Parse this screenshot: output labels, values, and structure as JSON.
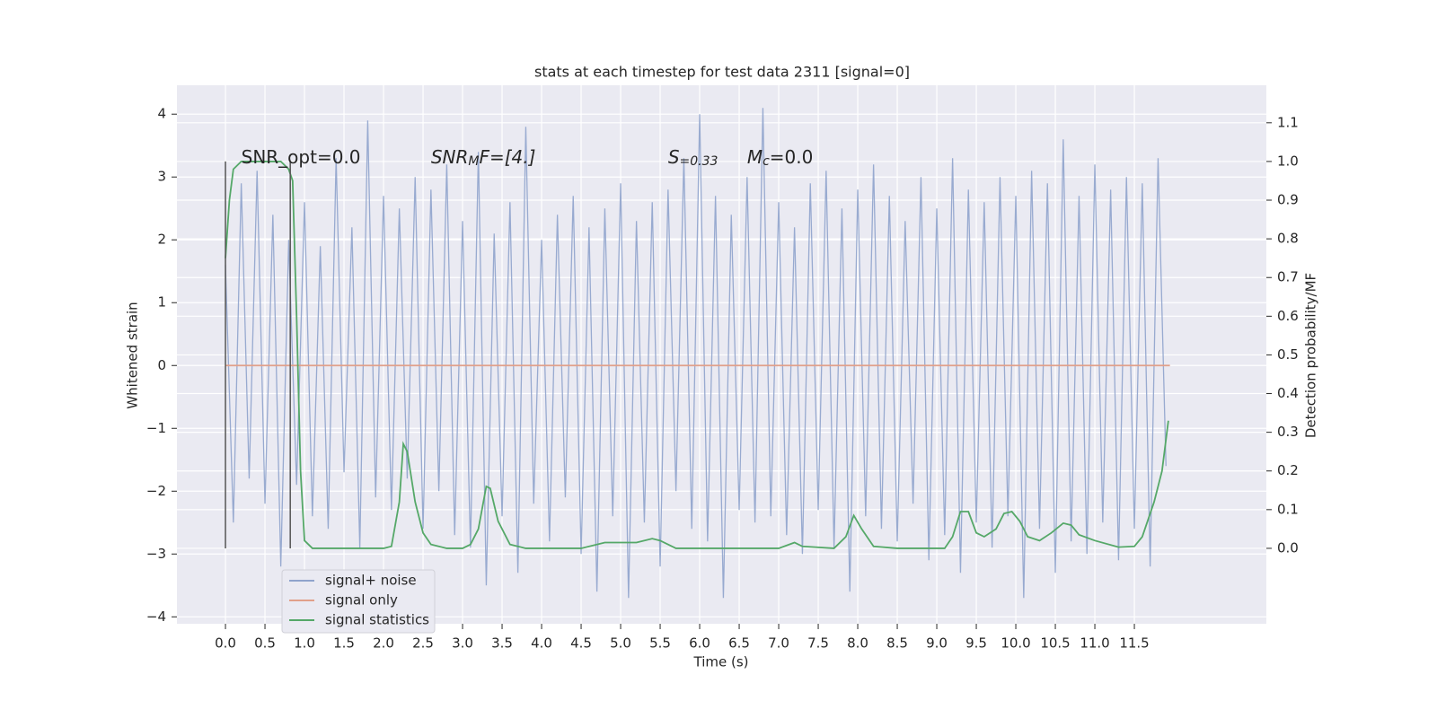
{
  "chart_data": {
    "type": "line",
    "title": "stats at each timestep for test data 2311 [signal=0]",
    "xlabel": "Time (s)",
    "ylabel": "Whitened strain",
    "y2label": "Detection probability/MF",
    "xlim": [
      -0.614,
      13.17
    ],
    "ylim": [
      -4.11,
      4.46
    ],
    "y2lim": [
      -0.195,
      1.197
    ],
    "grid": true,
    "legend": "lower left",
    "xticks": [
      {
        "value": 0,
        "label": "0.0"
      },
      0.5,
      {
        "value": 1,
        "label": "1.0"
      },
      1.5,
      {
        "value": 2,
        "label": "2.0"
      },
      2.5,
      {
        "value": 3,
        "label": "3.0"
      },
      3.5,
      {
        "value": 4,
        "label": "4.0"
      },
      4.5,
      {
        "value": 5,
        "label": "5.0"
      },
      5.5,
      {
        "value": 6,
        "label": "6.0"
      },
      6.5,
      {
        "value": 7,
        "label": "7.0"
      },
      7.5,
      {
        "value": 8,
        "label": "8.0"
      },
      8.5,
      {
        "value": 9,
        "label": "9.0"
      },
      9.5,
      {
        "value": 10,
        "label": "10.0"
      },
      10.5,
      {
        "value": 11,
        "label": "11.0"
      },
      11.5
    ],
    "yticks": [
      {
        "value": -4,
        "label": "−4"
      },
      {
        "value": -3,
        "label": "−3"
      },
      {
        "value": -2,
        "label": "−2"
      },
      {
        "value": -1,
        "label": "−1"
      },
      0,
      1,
      2,
      3,
      4
    ],
    "y2ticks": [
      {
        "value": 0,
        "label": "0.0"
      },
      0.1,
      0.2,
      0.3,
      0.4,
      0.5,
      0.6,
      0.7,
      0.8,
      0.9,
      {
        "value": 1,
        "label": "1.0"
      },
      1.1
    ],
    "annotations": [
      {
        "parts": [
          "SNR_opt=0.0"
        ],
        "x": 0.2,
        "y": 3.3
      },
      {
        "parts": [
          "SNR",
          "M",
          "F=[4.]"
        ],
        "x": 2.6,
        "y": 3.3
      },
      {
        "parts": [
          "S",
          "=0.33"
        ],
        "x": 5.6,
        "y": 3.3
      },
      {
        "parts": [
          "M",
          "c",
          "=0.0"
        ],
        "x": 6.6,
        "y": 3.3
      }
    ],
    "vlines": {
      "color": "#555555",
      "x": [
        0,
        0.82
      ],
      "ymin": [
        0,
        0
      ],
      "ymax": [
        1,
        1
      ]
    },
    "series": [
      {
        "name": "signal+ noise",
        "color": "#8fa3cc",
        "x": [
          0,
          0.1,
          0.2,
          0.3,
          0.4,
          0.5,
          0.6,
          0.7,
          0.8,
          0.9,
          1,
          1.1,
          1.2,
          1.3,
          1.4,
          1.5,
          1.6,
          1.7,
          1.8,
          1.9,
          2,
          2.1,
          2.2,
          2.3,
          2.4,
          2.5,
          2.6,
          2.7,
          2.8,
          2.9,
          3,
          3.1,
          3.2,
          3.3,
          3.4,
          3.5,
          3.6,
          3.7,
          3.8,
          3.9,
          4,
          4.1,
          4.2,
          4.3,
          4.4,
          4.5,
          4.6,
          4.7,
          4.8,
          4.9,
          5,
          5.1,
          5.2,
          5.3,
          5.4,
          5.5,
          5.6,
          5.7,
          5.8,
          5.9,
          6,
          6.1,
          6.2,
          6.3,
          6.4,
          6.5,
          6.6,
          6.7,
          6.8,
          6.9,
          7,
          7.1,
          7.2,
          7.3,
          7.4,
          7.5,
          7.6,
          7.7,
          7.8,
          7.9,
          8,
          8.1,
          8.2,
          8.3,
          8.4,
          8.5,
          8.6,
          8.7,
          8.8,
          8.9,
          9,
          9.1,
          9.2,
          9.3,
          9.4,
          9.5,
          9.6,
          9.7,
          9.8,
          9.9,
          10,
          10.1,
          10.2,
          10.3,
          10.4,
          10.5,
          10.6,
          10.7,
          10.8,
          10.9,
          11,
          11.1,
          11.2,
          11.3,
          11.4,
          11.5,
          11.6,
          11.7,
          11.8,
          11.9
        ],
        "values": [
          1.6,
          -2.5,
          2.9,
          -1.8,
          3.1,
          -2.2,
          2.4,
          -3.2,
          2.0,
          -1.9,
          2.6,
          -2.4,
          1.9,
          -2.6,
          3.3,
          -1.7,
          2.2,
          -2.9,
          3.9,
          -2.1,
          2.7,
          -2.3,
          2.5,
          -1.8,
          3.0,
          -2.6,
          2.8,
          -2.0,
          3.2,
          -2.7,
          2.3,
          -2.9,
          3.4,
          -3.5,
          2.1,
          -2.4,
          2.6,
          -3.3,
          3.8,
          -2.2,
          2.0,
          -2.8,
          2.4,
          -2.1,
          2.7,
          -3.0,
          2.2,
          -3.6,
          2.5,
          -2.4,
          2.9,
          -3.7,
          2.3,
          -2.5,
          2.6,
          -3.2,
          2.8,
          -2.0,
          3.3,
          -2.6,
          4.0,
          -2.8,
          2.7,
          -3.7,
          2.4,
          -2.3,
          3.0,
          -2.5,
          4.1,
          -2.4,
          2.6,
          -2.7,
          2.2,
          -3.0,
          2.9,
          -2.3,
          3.1,
          -2.9,
          2.5,
          -3.6,
          2.8,
          -2.4,
          3.2,
          -2.6,
          2.7,
          -2.8,
          2.3,
          -2.2,
          3.0,
          -3.1,
          2.5,
          -2.7,
          3.3,
          -3.3,
          2.8,
          -2.5,
          2.6,
          -2.9,
          3.0,
          -2.4,
          2.7,
          -3.7,
          3.1,
          -2.6,
          2.9,
          -3.3,
          3.6,
          -2.8,
          2.7,
          -3.0,
          3.2,
          -2.5,
          2.8,
          -3.1,
          3.0,
          -2.6,
          2.9,
          -3.2,
          3.3,
          -1.6
        ]
      },
      {
        "name": "signal only",
        "color": "#e1a08a",
        "x": [
          0,
          11.95
        ],
        "values": [
          0,
          0
        ]
      },
      {
        "name": "signal statistics",
        "color": "#55a868",
        "axis": "y2",
        "x": [
          0,
          0.05,
          0.1,
          0.2,
          0.3,
          0.7,
          0.8,
          0.85,
          0.9,
          0.95,
          1,
          1.1,
          1.5,
          2,
          2.1,
          2.2,
          2.25,
          2.3,
          2.4,
          2.5,
          2.6,
          2.8,
          3,
          3.1,
          3.2,
          3.3,
          3.35,
          3.45,
          3.6,
          3.8,
          4.5,
          4.8,
          5,
          5.2,
          5.4,
          5.5,
          5.7,
          6.5,
          7,
          7.2,
          7.3,
          7.7,
          7.85,
          7.95,
          8.05,
          8.2,
          8.5,
          9.1,
          9.2,
          9.3,
          9.4,
          9.5,
          9.6,
          9.75,
          9.85,
          9.95,
          10.05,
          10.15,
          10.3,
          10.45,
          10.6,
          10.7,
          10.8,
          11,
          11.3,
          11.5,
          11.6,
          11.75,
          11.85,
          11.93
        ],
        "values": [
          0.75,
          0.9,
          0.98,
          1.0,
          1.0,
          1.0,
          0.98,
          0.95,
          0.6,
          0.2,
          0.02,
          0.0,
          0.0,
          0.0,
          0.005,
          0.12,
          0.27,
          0.25,
          0.12,
          0.04,
          0.01,
          0.0,
          0.0,
          0.01,
          0.05,
          0.16,
          0.155,
          0.07,
          0.01,
          0.0,
          0.0,
          0.015,
          0.015,
          0.015,
          0.025,
          0.02,
          0.0,
          0.0,
          0.0,
          0.015,
          0.005,
          0.0,
          0.03,
          0.085,
          0.05,
          0.005,
          0.0,
          0.0,
          0.03,
          0.095,
          0.095,
          0.04,
          0.03,
          0.05,
          0.09,
          0.095,
          0.07,
          0.03,
          0.02,
          0.04,
          0.065,
          0.06,
          0.035,
          0.02,
          0.003,
          0.005,
          0.03,
          0.12,
          0.2,
          0.33
        ]
      }
    ]
  }
}
